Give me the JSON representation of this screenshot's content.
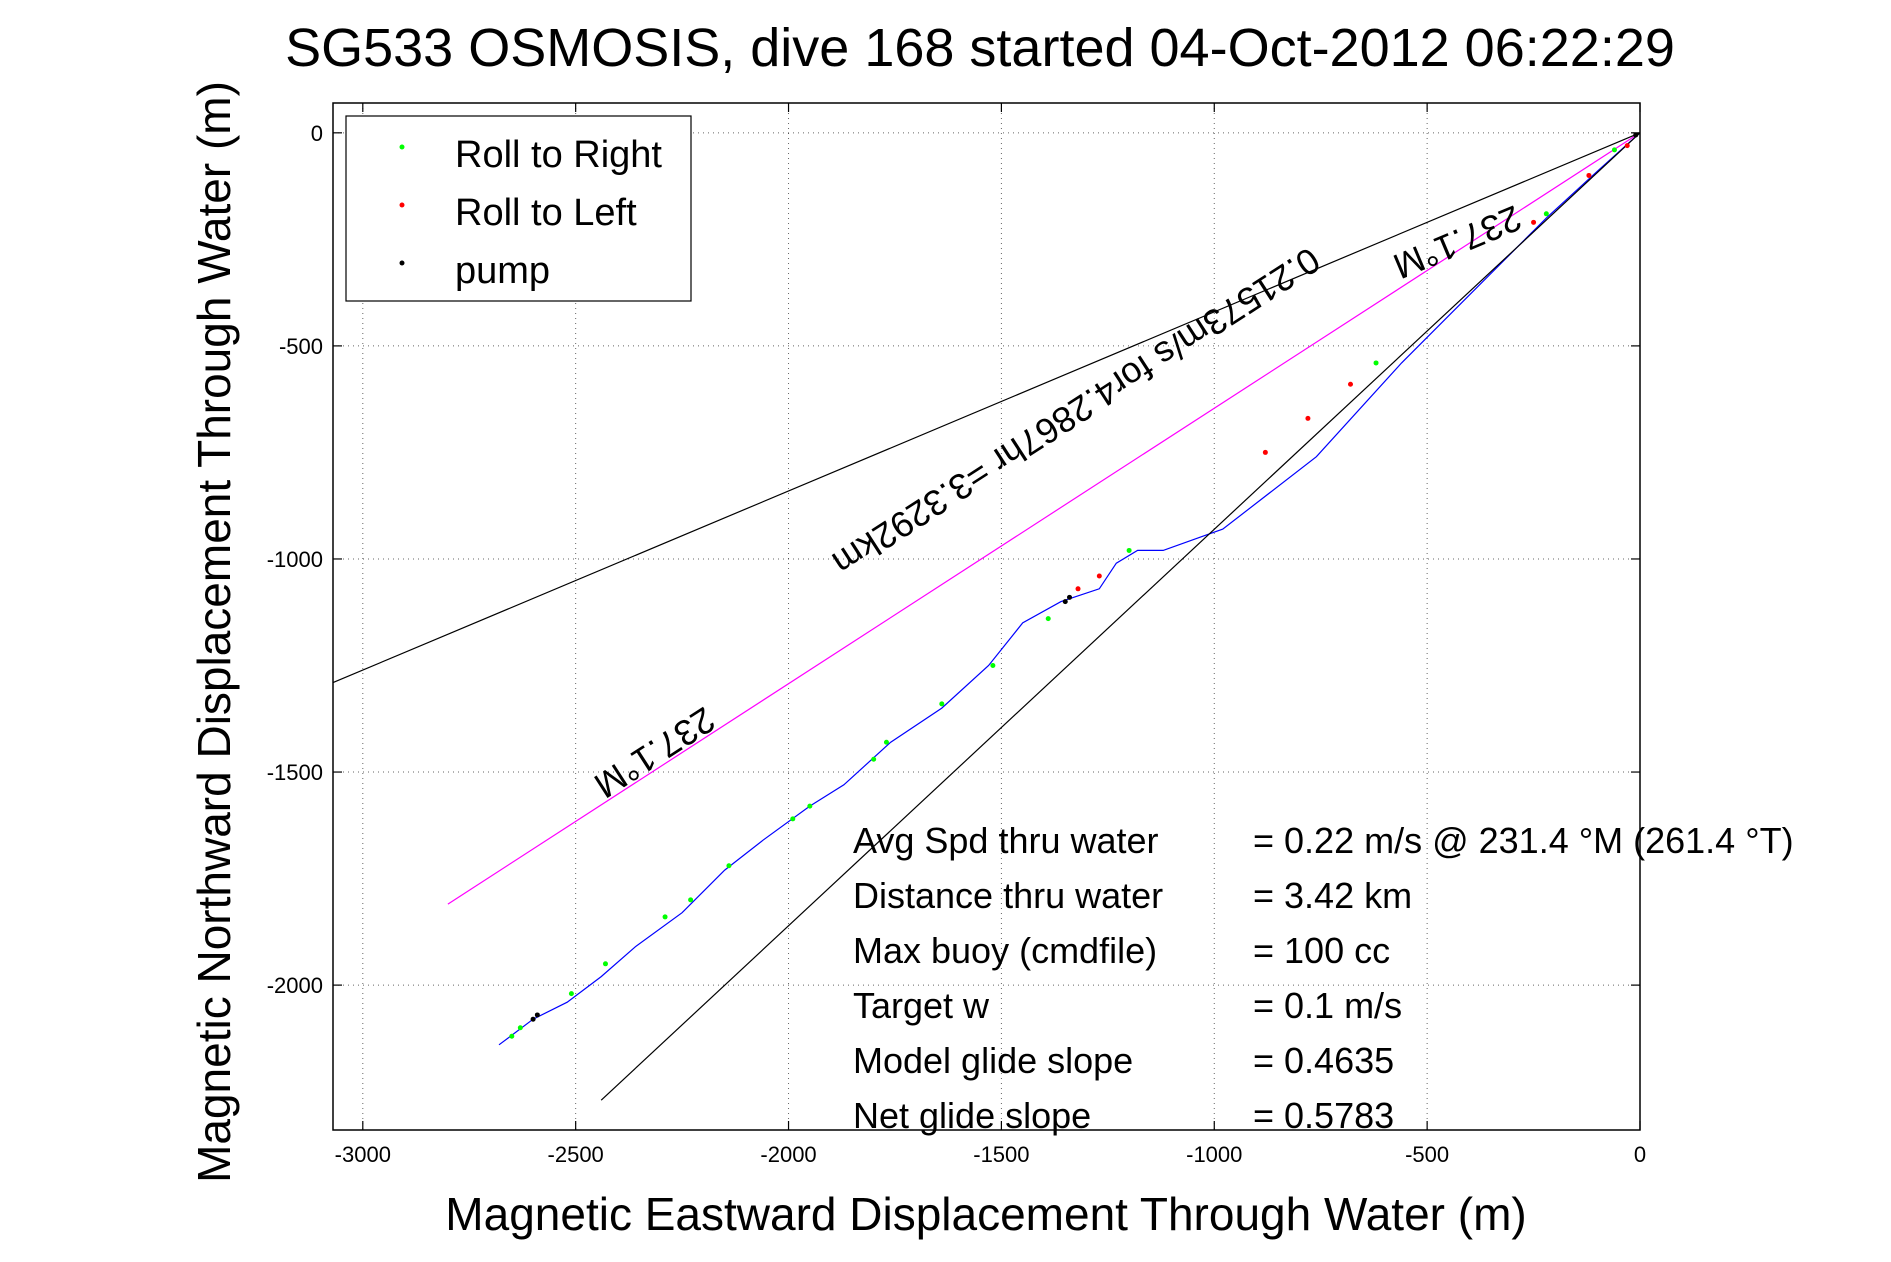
{
  "chart_data": {
    "type": "line",
    "title": "SG533 OSMOSIS, dive 168 started 04-Oct-2012 06:22:29",
    "xlabel": "Magnetic Eastward Displacement Through Water (m)",
    "ylabel": "Magnetic Northward Displacement Through Water (m)",
    "xlim": [
      -3070,
      0
    ],
    "ylim": [
      -2340,
      70
    ],
    "xticks": [
      -3000,
      -2500,
      -2000,
      -1500,
      -1000,
      -500,
      0
    ],
    "yticks": [
      0,
      -500,
      -1000,
      -1500,
      -2000
    ],
    "xtick_labels": [
      "-3000",
      "-2500",
      "-2000",
      "-1500",
      "-1000",
      "-500",
      "0"
    ],
    "ytick_labels": [
      "0",
      "-500",
      "-1000",
      "-1500",
      "-2000"
    ],
    "grid": true,
    "legend": {
      "position": "top-left",
      "entries": [
        {
          "label": "Roll to Right",
          "color": "#00ff00"
        },
        {
          "label": "Roll to Left",
          "color": "#ff0000"
        },
        {
          "label": "pump",
          "color": "#000000"
        }
      ]
    },
    "series": [
      {
        "name": "track",
        "color": "#0000ff",
        "x": [
          0,
          -100,
          -220,
          -380,
          -560,
          -760,
          -980,
          -1120,
          -1180,
          -1230,
          -1270,
          -1360,
          -1450,
          -1530,
          -1640,
          -1760,
          -1870,
          -1950,
          -2060,
          -2150,
          -2250,
          -2360,
          -2440,
          -2520,
          -2600,
          -2640,
          -2680
        ],
        "y": [
          0,
          -90,
          -200,
          -360,
          -540,
          -760,
          -930,
          -980,
          -980,
          -1010,
          -1070,
          -1100,
          -1150,
          -1250,
          -1350,
          -1430,
          -1530,
          -1580,
          -1660,
          -1730,
          -1830,
          -1910,
          -1980,
          -2040,
          -2080,
          -2110,
          -2140
        ]
      },
      {
        "name": "heading 237.1 M",
        "color": "#ff00ff",
        "x": [
          0,
          -2800
        ],
        "y": [
          0,
          -1810
        ]
      },
      {
        "name": "upper bound",
        "color": "#000000",
        "x": [
          0,
          -3070
        ],
        "y": [
          0,
          -1290
        ]
      },
      {
        "name": "lower bound",
        "color": "#000000",
        "x": [
          0,
          -2440
        ],
        "y": [
          0,
          -2270
        ]
      }
    ],
    "roll_to_right_points": {
      "x": [
        -60,
        -220,
        -620,
        -1200,
        -1390,
        -1520,
        -1640,
        -1770,
        -1800,
        -1950,
        -1990,
        -2140,
        -2230,
        -2290,
        -2430,
        -2510,
        -2630,
        -2650
      ],
      "y": [
        -40,
        -190,
        -540,
        -980,
        -1140,
        -1250,
        -1340,
        -1430,
        -1470,
        -1580,
        -1610,
        -1720,
        -1800,
        -1840,
        -1950,
        -2020,
        -2100,
        -2120
      ]
    },
    "roll_to_left_points": {
      "x": [
        -30,
        -120,
        -250,
        -680,
        -780,
        -880,
        -1270,
        -1320
      ],
      "y": [
        -30,
        -100,
        -210,
        -590,
        -670,
        -750,
        -1040,
        -1070
      ]
    },
    "pump_points": {
      "x": [
        -10,
        -1340,
        -1350,
        -2590,
        -2600
      ],
      "y": [
        -5,
        -1090,
        -1100,
        -2070,
        -2080
      ]
    },
    "annotations": [
      {
        "text": "237.1°M",
        "x": -2330,
        "y": -1430,
        "angle": 147.1
      },
      {
        "text": "237.1°M",
        "x": -440,
        "y": -230,
        "angle": 157.2
      },
      {
        "text": "0.21573m/s for4.2867hr =3.3292km",
        "x": -1340,
        "y": -630,
        "angle": 147.1
      }
    ],
    "stats": [
      {
        "label": "Avg Spd thru water",
        "value": "=  0.22 m/s @ 231.4 °M (261.4 °T)"
      },
      {
        "label": "Distance thru water",
        "value": "=  3.42 km"
      },
      {
        "label": "Max buoy (cmdfile)",
        "value": "= 100 cc"
      },
      {
        "label": "Target w",
        "value": "= 0.1 m/s"
      },
      {
        "label": "Model glide slope",
        "value": "= 0.4635"
      },
      {
        "label": "Net glide slope",
        "value": "= 0.5783"
      }
    ]
  }
}
